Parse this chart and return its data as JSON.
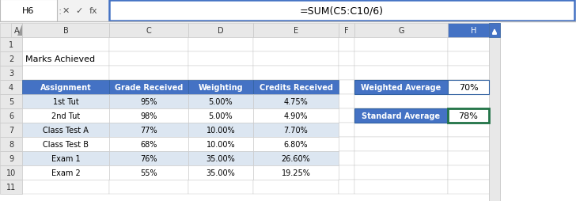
{
  "formula_bar_text": "=SUM(C5:C10/6)",
  "cell_ref": "H6",
  "title_text": "Marks Achieved",
  "header_cols": [
    "Assignment",
    "Grade Received",
    "Weighting",
    "Credits Received"
  ],
  "rows": [
    [
      "1st Tut",
      "95%",
      "5.00%",
      "4.75%"
    ],
    [
      "2nd Tut",
      "98%",
      "5.00%",
      "4.90%"
    ],
    [
      "Class Test A",
      "77%",
      "10.00%",
      "7.70%"
    ],
    [
      "Class Test B",
      "68%",
      "10.00%",
      "6.80%"
    ],
    [
      "Exam 1",
      "76%",
      "35.00%",
      "26.60%"
    ],
    [
      "Exam 2",
      "55%",
      "35.00%",
      "19.25%"
    ]
  ],
  "side_labels": [
    "Weighted Average",
    "Standard Average"
  ],
  "side_values": [
    "70%",
    "78%"
  ],
  "header_bg": "#4472C4",
  "header_fg": "#FFFFFF",
  "row_bg": [
    "#DCE6F1",
    "#FFFFFF",
    "#DCE6F1",
    "#FFFFFF",
    "#DCE6F1",
    "#FFFFFF"
  ],
  "side_label_bg": "#4472C4",
  "side_label_fg": "#FFFFFF",
  "excel_bg": "#F2F2F2",
  "col_header_bg": "#E8E8E8",
  "col_header_sel_bg": "#4472C4",
  "col_header_sel_fg": "#FFFFFF",
  "grid_color": "#C8C8C8",
  "col_header_fg": "#333333",
  "row_num_fg": "#333333",
  "formula_border": "#4472C4",
  "green_border": "#217346"
}
